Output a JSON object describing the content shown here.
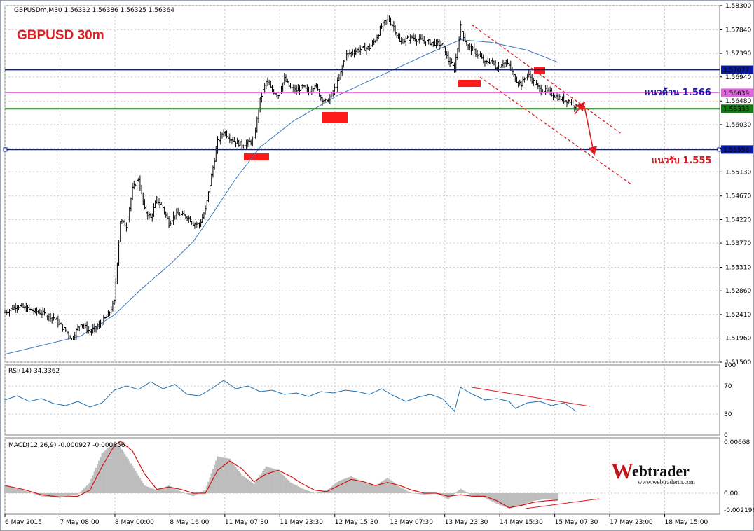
{
  "header": {
    "symbol_line": "GBPUSDm,M30  1.56332 1.56386 1.56325 1.56364",
    "chart_title": "GBPUSD 30m"
  },
  "colors": {
    "title": "#e11b22",
    "resistance_text": "#1a1aa8",
    "support_text": "#e11b22",
    "blue_line": "#0a1a9c",
    "green_line": "#137a13",
    "magenta_line": "#e066e0",
    "ma_line": "#3a78c2",
    "rsi_line": "#1f6fb0",
    "macd_signal": "#d21414",
    "macd_hist": "#bdbdbd",
    "channel": "#e11b22",
    "zone": "#ff1a1a"
  },
  "price_labels": {
    "upper_blue": "1.57077",
    "magenta": "1.56639",
    "green": "1.56333",
    "lower_blue": "1.55556"
  },
  "annotations": {
    "resistance": "แนวต้าน 1.566",
    "support": "แนวรับ 1.555"
  },
  "rsi": {
    "label": "RSI(14) 34.3362",
    "ticks": [
      "100",
      "70",
      "30",
      "0"
    ]
  },
  "macd": {
    "label": "MACD(12,26,9) -0.000927 -0.000856",
    "ticks": [
      "0.00668",
      "0.00",
      "-0.002196"
    ]
  },
  "logo": {
    "name": "Webtrader",
    "url": "www.webtraderth.com"
  },
  "chart_data": {
    "type": "candlestick",
    "title": "GBPUSD 30m",
    "y_ticks": [
      "1.58300",
      "1.57840",
      "1.57390",
      "1.56940",
      "1.56480",
      "1.56030",
      "1.55580",
      "1.55130",
      "1.54670",
      "1.54220",
      "1.53770",
      "1.53310",
      "1.52860",
      "1.52410",
      "1.51960",
      "1.51500"
    ],
    "ylim": [
      1.515,
      1.583
    ],
    "x_ticks": [
      "6 May 2015",
      "7 May 08:00",
      "8 May 00:00",
      "8 May 16:00",
      "11 May 07:30",
      "11 May 23:30",
      "12 May 15:30",
      "13 May 07:30",
      "13 May 23:30",
      "14 May 15:30",
      "15 May 07:30",
      "17 May 23:00",
      "18 May 15:00"
    ],
    "last_ohlc": {
      "open": 1.56332,
      "high": 1.56386,
      "low": 1.56325,
      "close": 1.56364
    },
    "horizontal_levels": [
      1.57077,
      1.56639,
      1.56333,
      1.55556
    ],
    "close_path": [
      [
        0,
        1.5245
      ],
      [
        4,
        1.5258
      ],
      [
        8,
        1.525
      ],
      [
        12,
        1.5244
      ],
      [
        16,
        1.5235
      ],
      [
        20,
        1.521
      ],
      [
        22,
        1.5195
      ],
      [
        25,
        1.5225
      ],
      [
        28,
        1.5208
      ],
      [
        31,
        1.522
      ],
      [
        34,
        1.524
      ],
      [
        36,
        1.5265
      ],
      [
        38,
        1.542
      ],
      [
        40,
        1.541
      ],
      [
        42,
        1.548
      ],
      [
        44,
        1.55
      ],
      [
        46,
        1.544
      ],
      [
        48,
        1.5425
      ],
      [
        50,
        1.546
      ],
      [
        52,
        1.5445
      ],
      [
        54,
        1.5415
      ],
      [
        56,
        1.5432
      ],
      [
        58,
        1.543
      ],
      [
        60,
        1.5428
      ],
      [
        62,
        1.5415
      ],
      [
        64,
        1.5412
      ],
      [
        66,
        1.544
      ],
      [
        68,
        1.5505
      ],
      [
        70,
        1.557
      ],
      [
        72,
        1.559
      ],
      [
        74,
        1.5578
      ],
      [
        76,
        1.557
      ],
      [
        78,
        1.5565
      ],
      [
        80,
        1.5568
      ],
      [
        82,
        1.5575
      ],
      [
        84,
        1.565
      ],
      [
        86,
        1.5685
      ],
      [
        88,
        1.5668
      ],
      [
        90,
        1.566
      ],
      [
        92,
        1.569
      ],
      [
        94,
        1.5672
      ],
      [
        96,
        1.5668
      ],
      [
        98,
        1.5675
      ],
      [
        100,
        1.5665
      ],
      [
        102,
        1.568
      ],
      [
        104,
        1.5655
      ],
      [
        106,
        1.5645
      ],
      [
        108,
        1.5665
      ],
      [
        110,
        1.569
      ],
      [
        112,
        1.5735
      ],
      [
        114,
        1.574
      ],
      [
        116,
        1.5745
      ],
      [
        118,
        1.5748
      ],
      [
        120,
        1.575
      ],
      [
        122,
        1.5765
      ],
      [
        124,
        1.579
      ],
      [
        126,
        1.5805
      ],
      [
        128,
        1.579
      ],
      [
        130,
        1.576
      ],
      [
        132,
        1.5765
      ],
      [
        134,
        1.577
      ],
      [
        136,
        1.5765
      ],
      [
        138,
        1.5763
      ],
      [
        140,
        1.576
      ],
      [
        142,
        1.5758
      ],
      [
        144,
        1.5755
      ],
      [
        146,
        1.5725
      ],
      [
        148,
        1.571
      ],
      [
        150,
        1.579
      ],
      [
        152,
        1.5755
      ],
      [
        154,
        1.5745
      ],
      [
        156,
        1.5735
      ],
      [
        158,
        1.572
      ],
      [
        160,
        1.5725
      ],
      [
        162,
        1.571
      ],
      [
        164,
        1.5722
      ],
      [
        166,
        1.5715
      ],
      [
        168,
        1.569
      ],
      [
        170,
        1.568
      ],
      [
        172,
        1.57
      ],
      [
        174,
        1.5685
      ],
      [
        176,
        1.567
      ],
      [
        178,
        1.5668
      ],
      [
        180,
        1.5662
      ],
      [
        182,
        1.5655
      ],
      [
        184,
        1.565
      ],
      [
        186,
        1.5648
      ],
      [
        188,
        1.5636
      ]
    ],
    "ma_path": [
      [
        0,
        1.5165
      ],
      [
        25,
        1.52
      ],
      [
        36,
        1.524
      ],
      [
        45,
        1.529
      ],
      [
        55,
        1.534
      ],
      [
        62,
        1.538
      ],
      [
        68,
        1.543
      ],
      [
        76,
        1.55
      ],
      [
        84,
        1.556
      ],
      [
        95,
        1.561
      ],
      [
        110,
        1.566
      ],
      [
        125,
        1.57
      ],
      [
        140,
        1.574
      ],
      [
        150,
        1.5765
      ],
      [
        160,
        1.576
      ],
      [
        172,
        1.5745
      ],
      [
        182,
        1.5722
      ]
    ],
    "rsi_path": [
      [
        0,
        50
      ],
      [
        4,
        56
      ],
      [
        8,
        48
      ],
      [
        12,
        52
      ],
      [
        16,
        45
      ],
      [
        20,
        42
      ],
      [
        24,
        48
      ],
      [
        28,
        40
      ],
      [
        32,
        46
      ],
      [
        36,
        64
      ],
      [
        40,
        70
      ],
      [
        44,
        65
      ],
      [
        48,
        76
      ],
      [
        52,
        66
      ],
      [
        56,
        72
      ],
      [
        60,
        58
      ],
      [
        64,
        56
      ],
      [
        68,
        66
      ],
      [
        72,
        78
      ],
      [
        76,
        66
      ],
      [
        80,
        70
      ],
      [
        84,
        62
      ],
      [
        88,
        64
      ],
      [
        92,
        58
      ],
      [
        96,
        60
      ],
      [
        100,
        55
      ],
      [
        104,
        62
      ],
      [
        108,
        60
      ],
      [
        112,
        64
      ],
      [
        116,
        62
      ],
      [
        120,
        58
      ],
      [
        124,
        66
      ],
      [
        128,
        56
      ],
      [
        132,
        48
      ],
      [
        136,
        54
      ],
      [
        140,
        58
      ],
      [
        144,
        52
      ],
      [
        148,
        34
      ],
      [
        150,
        68
      ],
      [
        154,
        58
      ],
      [
        158,
        50
      ],
      [
        162,
        52
      ],
      [
        166,
        48
      ],
      [
        168,
        38
      ],
      [
        172,
        46
      ],
      [
        176,
        48
      ],
      [
        180,
        42
      ],
      [
        184,
        46
      ],
      [
        188,
        34
      ]
    ],
    "macd_signal_path": [
      [
        0,
        0.001
      ],
      [
        6,
        0.0005
      ],
      [
        12,
        -0.0002
      ],
      [
        18,
        -0.0005
      ],
      [
        24,
        -0.0004
      ],
      [
        28,
        0.0004
      ],
      [
        32,
        0.0035
      ],
      [
        36,
        0.0062
      ],
      [
        38,
        0.0068
      ],
      [
        42,
        0.0055
      ],
      [
        46,
        0.0025
      ],
      [
        50,
        0.0005
      ],
      [
        54,
        0.0008
      ],
      [
        58,
        0.0005
      ],
      [
        62,
        0.0
      ],
      [
        66,
        0.0
      ],
      [
        70,
        0.003
      ],
      [
        74,
        0.0042
      ],
      [
        78,
        0.0032
      ],
      [
        82,
        0.0015
      ],
      [
        86,
        0.0025
      ],
      [
        90,
        0.003
      ],
      [
        94,
        0.0022
      ],
      [
        98,
        0.0012
      ],
      [
        102,
        0.0004
      ],
      [
        106,
        0.0002
      ],
      [
        110,
        0.001
      ],
      [
        114,
        0.0018
      ],
      [
        118,
        0.0015
      ],
      [
        122,
        0.001
      ],
      [
        126,
        0.0014
      ],
      [
        130,
        0.001
      ],
      [
        134,
        0.0004
      ],
      [
        138,
        0.0
      ],
      [
        142,
        0.0
      ],
      [
        146,
        -0.0004
      ],
      [
        150,
        -0.0002
      ],
      [
        154,
        -0.0004
      ],
      [
        158,
        -0.0004
      ],
      [
        162,
        -0.001
      ],
      [
        166,
        -0.0019
      ],
      [
        170,
        -0.0016
      ],
      [
        174,
        -0.0012
      ],
      [
        178,
        -0.001
      ],
      [
        182,
        -0.0009
      ]
    ],
    "macd_hist_path": [
      [
        0,
        0.001
      ],
      [
        6,
        0.0004
      ],
      [
        12,
        -0.0004
      ],
      [
        18,
        -0.0006
      ],
      [
        24,
        -0.0002
      ],
      [
        28,
        0.0014
      ],
      [
        32,
        0.0052
      ],
      [
        36,
        0.0066
      ],
      [
        38,
        0.006
      ],
      [
        42,
        0.0036
      ],
      [
        46,
        0.001
      ],
      [
        50,
        0.0004
      ],
      [
        54,
        0.001
      ],
      [
        58,
        0.0002
      ],
      [
        62,
        -0.0004
      ],
      [
        66,
        0.0004
      ],
      [
        70,
        0.0048
      ],
      [
        74,
        0.0045
      ],
      [
        78,
        0.0024
      ],
      [
        82,
        0.0012
      ],
      [
        86,
        0.0035
      ],
      [
        90,
        0.003
      ],
      [
        94,
        0.0014
      ],
      [
        98,
        0.0006
      ],
      [
        102,
        0.0
      ],
      [
        106,
        0.0004
      ],
      [
        110,
        0.0016
      ],
      [
        114,
        0.0022
      ],
      [
        118,
        0.0014
      ],
      [
        122,
        0.001
      ],
      [
        126,
        0.002
      ],
      [
        130,
        0.0008
      ],
      [
        134,
        0.0
      ],
      [
        138,
        -0.0002
      ],
      [
        142,
        0.0
      ],
      [
        146,
        -0.0008
      ],
      [
        150,
        0.0006
      ],
      [
        154,
        -0.0004
      ],
      [
        158,
        -0.0006
      ],
      [
        162,
        -0.0014
      ],
      [
        166,
        -0.002
      ],
      [
        170,
        -0.0016
      ],
      [
        174,
        -0.001
      ],
      [
        178,
        -0.0008
      ],
      [
        182,
        -0.0009
      ]
    ]
  }
}
